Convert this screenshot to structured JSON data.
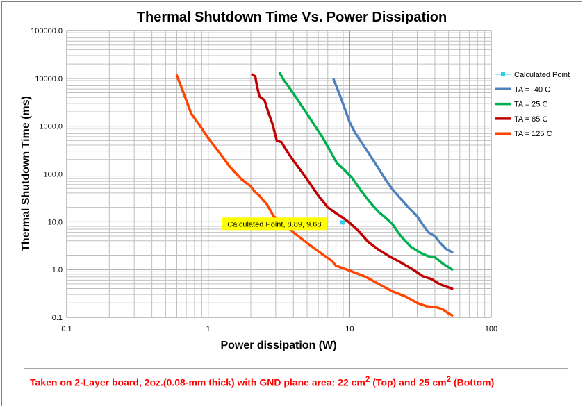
{
  "colors": {
    "calculated_point": "#33ccee",
    "ta_m40": "#4f81bd",
    "ta_25": "#00b050",
    "ta_85": "#c00000",
    "ta_125": "#ff4500",
    "annotation_bg": "#ffff00",
    "note_text": "#ff0000"
  },
  "chart_data": {
    "type": "line",
    "title": "Thermal Shutdown Time Vs. Power Dissipation",
    "xlabel": "Power dissipation (W)",
    "ylabel": "Thermal Shutdown Time (ms)",
    "x_scale": "log",
    "y_scale": "log",
    "xlim": [
      0.1,
      100
    ],
    "ylim": [
      0.1,
      100000
    ],
    "x_ticks": [
      "0.1",
      "1",
      "10",
      "100"
    ],
    "y_ticks": [
      "0.1",
      "1.0",
      "10.0",
      "100.0",
      "1000.0",
      "10000.0",
      "100000.0"
    ],
    "grid": true,
    "legend_position": "right",
    "series": [
      {
        "name": "TA = -40 C",
        "color_key": "ta_m40",
        "points": [
          [
            7.7,
            9500
          ],
          [
            8.5,
            4500
          ],
          [
            9.3,
            2200
          ],
          [
            10,
            1200
          ],
          [
            11,
            700
          ],
          [
            12.5,
            400
          ],
          [
            14,
            240
          ],
          [
            16,
            130
          ],
          [
            18,
            75
          ],
          [
            20,
            48
          ],
          [
            23,
            30
          ],
          [
            26,
            20
          ],
          [
            30,
            13
          ],
          [
            33,
            8.5
          ],
          [
            36,
            6
          ],
          [
            40,
            5
          ],
          [
            44,
            3.5
          ],
          [
            48,
            2.7
          ],
          [
            53,
            2.3
          ]
        ]
      },
      {
        "name": "TA = 25 C",
        "color_key": "ta_25",
        "points": [
          [
            3.2,
            13000
          ],
          [
            3.4,
            9500
          ],
          [
            3.8,
            6000
          ],
          [
            4.3,
            3500
          ],
          [
            5,
            1800
          ],
          [
            5.7,
            1000
          ],
          [
            6.5,
            550
          ],
          [
            7.3,
            300
          ],
          [
            8.1,
            170
          ],
          [
            9.2,
            120
          ],
          [
            10.5,
            80
          ],
          [
            12,
            45
          ],
          [
            14,
            25
          ],
          [
            16,
            16
          ],
          [
            18,
            12
          ],
          [
            20,
            9
          ],
          [
            23,
            5
          ],
          [
            27,
            3
          ],
          [
            32,
            2.2
          ],
          [
            36,
            1.9
          ],
          [
            40,
            1.8
          ],
          [
            46,
            1.3
          ],
          [
            53,
            1.0
          ]
        ]
      },
      {
        "name": "TA = 85 C",
        "color_key": "ta_85",
        "points": [
          [
            2.05,
            12000
          ],
          [
            2.15,
            11000
          ],
          [
            2.2,
            7500
          ],
          [
            2.3,
            4200
          ],
          [
            2.5,
            3500
          ],
          [
            2.65,
            2000
          ],
          [
            2.85,
            1100
          ],
          [
            3.05,
            500
          ],
          [
            3.3,
            460
          ],
          [
            3.6,
            300
          ],
          [
            4,
            190
          ],
          [
            4.6,
            110
          ],
          [
            5.3,
            60
          ],
          [
            6,
            35
          ],
          [
            7,
            20
          ],
          [
            8,
            15
          ],
          [
            9,
            12
          ],
          [
            10,
            9.5
          ],
          [
            11.5,
            6.5
          ],
          [
            13.5,
            3.8
          ],
          [
            16,
            2.6
          ],
          [
            19,
            1.9
          ],
          [
            23,
            1.4
          ],
          [
            28,
            1.0
          ],
          [
            33,
            0.72
          ],
          [
            38,
            0.63
          ],
          [
            43,
            0.5
          ],
          [
            48,
            0.44
          ],
          [
            53,
            0.4
          ]
        ]
      },
      {
        "name": "TA = 125 C",
        "color_key": "ta_125",
        "points": [
          [
            0.6,
            11500
          ],
          [
            0.64,
            7000
          ],
          [
            0.7,
            3500
          ],
          [
            0.76,
            1800
          ],
          [
            0.86,
            1100
          ],
          [
            1,
            560
          ],
          [
            1.2,
            280
          ],
          [
            1.4,
            150
          ],
          [
            1.7,
            80
          ],
          [
            2,
            55
          ],
          [
            2.1,
            45
          ],
          [
            2.3,
            35
          ],
          [
            2.6,
            23
          ],
          [
            2.9,
            13
          ],
          [
            3.3,
            10
          ],
          [
            4,
            6
          ],
          [
            5,
            3.6
          ],
          [
            6,
            2.4
          ],
          [
            7.5,
            1.5
          ],
          [
            8,
            1.2
          ],
          [
            10,
            0.95
          ],
          [
            13,
            0.7
          ],
          [
            16,
            0.5
          ],
          [
            20,
            0.35
          ],
          [
            25,
            0.27
          ],
          [
            30,
            0.2
          ],
          [
            35,
            0.17
          ],
          [
            40,
            0.165
          ],
          [
            45,
            0.15
          ],
          [
            50,
            0.12
          ],
          [
            53,
            0.11
          ]
        ]
      }
    ],
    "calculated_point": {
      "name": "Calculated Point",
      "x": 8.89,
      "y": 9.68,
      "label": "Calculated Point, 8.89, 9.68"
    }
  },
  "note": {
    "prefix": "Taken on 2-Layer board, 2oz.(0.08-mm thick) with GND plane area: 22 cm",
    "sup1": "2",
    "middle": " (Top) and 25 cm",
    "sup2": "2",
    "suffix": " (Bottom)"
  }
}
